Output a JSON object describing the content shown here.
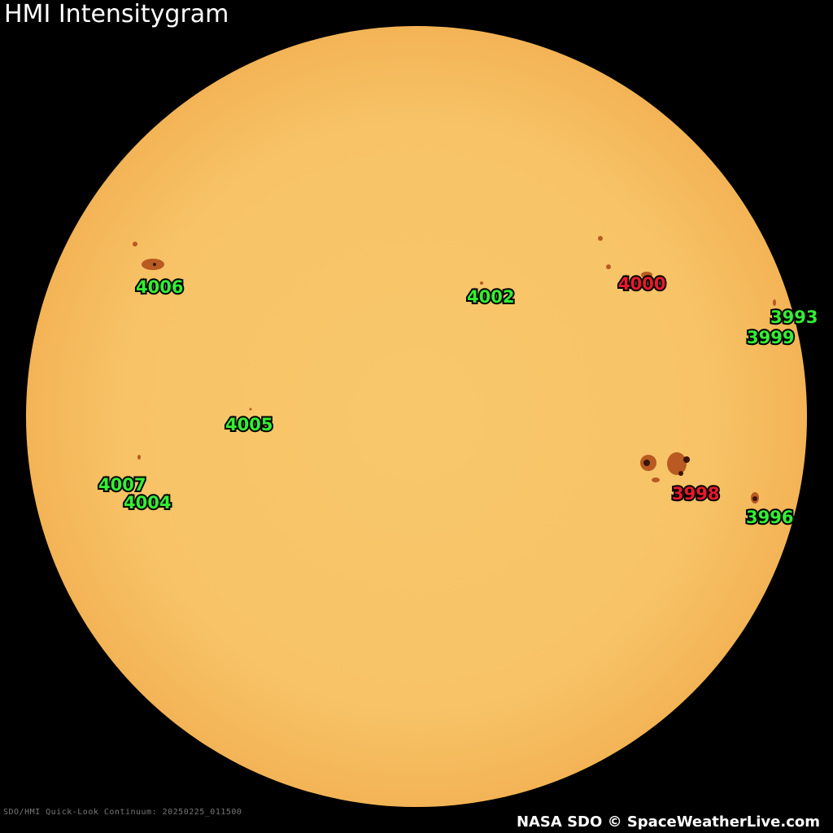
{
  "title": "HMI Intensitygram",
  "metadata": "SDO/HMI Quick-Look Continuum: 20250225_011500",
  "credit": "NASA SDO © SpaceWeatherLive.com",
  "colors": {
    "background": "#000000",
    "sun": "#f7c366",
    "sunspot": "#a8481a",
    "umbra": "#3a1408",
    "label_green": "#33ee33",
    "label_red": "#e8192c"
  },
  "regions": [
    {
      "id": "4006",
      "color": "green"
    },
    {
      "id": "4002",
      "color": "green"
    },
    {
      "id": "4000",
      "color": "red"
    },
    {
      "id": "3993",
      "color": "green"
    },
    {
      "id": "3999",
      "color": "green"
    },
    {
      "id": "4005",
      "color": "green"
    },
    {
      "id": "4007",
      "color": "green"
    },
    {
      "id": "4004",
      "color": "green"
    },
    {
      "id": "3998",
      "color": "red"
    },
    {
      "id": "3996",
      "color": "green"
    }
  ]
}
